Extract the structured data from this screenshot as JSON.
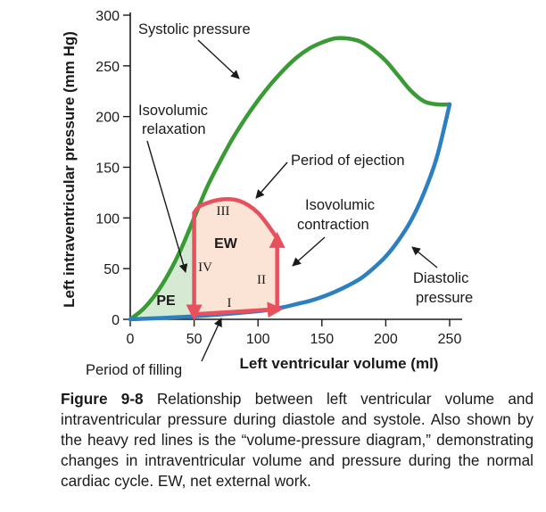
{
  "chart_data": {
    "type": "line",
    "xlabel": "Left ventricular volume (ml)",
    "ylabel": "Left intraventricular pressure (mm Hg)",
    "xlim": [
      0,
      250
    ],
    "ylim": [
      0,
      300
    ],
    "xticks": [
      "0",
      "50",
      "100",
      "150",
      "200",
      "250"
    ],
    "yticks": [
      "0",
      "50",
      "100",
      "150",
      "200",
      "250",
      "300"
    ],
    "grid": false,
    "series": [
      {
        "name": "Systolic pressure",
        "color": "#3a9a35",
        "x": [
          0,
          10,
          20,
          30,
          40,
          50,
          60,
          70,
          80,
          90,
          100,
          110,
          120,
          130,
          140,
          150,
          160,
          170,
          180,
          190,
          200,
          210,
          220,
          230,
          240,
          250
        ],
        "y": [
          0,
          10,
          25,
          45,
          70,
          100,
          130,
          155,
          178,
          198,
          216,
          232,
          246,
          258,
          267,
          273,
          277,
          277,
          274,
          266,
          255,
          240,
          225,
          215,
          212,
          212
        ]
      },
      {
        "name": "Diastolic pressure",
        "color": "#2c7fc0",
        "x": [
          0,
          50,
          100,
          110,
          120,
          130,
          140,
          150,
          160,
          170,
          180,
          190,
          200,
          210,
          220,
          230,
          240,
          250
        ],
        "y": [
          0,
          3,
          8,
          10,
          12,
          15,
          18,
          22,
          27,
          33,
          40,
          50,
          62,
          78,
          98,
          125,
          160,
          212
        ]
      },
      {
        "name": "Volume-pressure diagram",
        "color": "#e8505e",
        "phases": [
          {
            "label": "I",
            "description": "Period of filling",
            "x": [
              50,
              115
            ],
            "y": [
              5,
              10
            ]
          },
          {
            "label": "II",
            "description": "Isovolumic contraction",
            "x": [
              115,
              115
            ],
            "y": [
              10,
              80
            ]
          },
          {
            "label": "III",
            "description": "Period of ejection",
            "x": [
              115,
              100,
              85,
              70,
              55,
              50
            ],
            "y": [
              80,
              105,
              117,
              118,
              112,
              105
            ]
          },
          {
            "label": "IV",
            "description": "Isovolumic relaxation",
            "x": [
              50,
              50
            ],
            "y": [
              105,
              5
            ]
          }
        ]
      }
    ],
    "regions": [
      {
        "label": "EW",
        "color": "#fbe4d5"
      },
      {
        "label": "PE",
        "color": "#d6e9d2"
      }
    ],
    "annotations": [
      "Systolic pressure",
      "Isovolumic relaxation",
      "Period of ejection",
      "Isovolumic contraction",
      "Diastolic pressure",
      "Period of filling"
    ]
  },
  "labels": {
    "systolic": "Systolic pressure",
    "iso_relax_1": "Isovolumic",
    "iso_relax_2": "relaxation",
    "ejection": "Period of ejection",
    "iso_contr_1": "Isovolumic",
    "iso_contr_2": "contraction",
    "diastolic_1": "Diastolic",
    "diastolic_2": "pressure",
    "filling": "Period of filling",
    "ew": "EW",
    "pe": "PE",
    "phase_i": "I",
    "phase_ii": "II",
    "phase_iii": "III",
    "phase_iv": "IV"
  },
  "caption": {
    "label": "Figure 9-8",
    "text": "Relationship between left ventricular volume and intraventricular pressure during diastole and systole. Also shown by the heavy red lines is the “volume-pressure diagram,” demonstrating changes in intraventricular volume and pressure during the normal cardiac cycle. EW, net external work."
  },
  "colors": {
    "systolic": "#3a9a35",
    "diastolic": "#2c7fc0",
    "loop": "#e8505e",
    "ew_fill": "#fbe4d5",
    "pe_fill": "#d6e9d2",
    "axis": "#1a1a1a"
  }
}
